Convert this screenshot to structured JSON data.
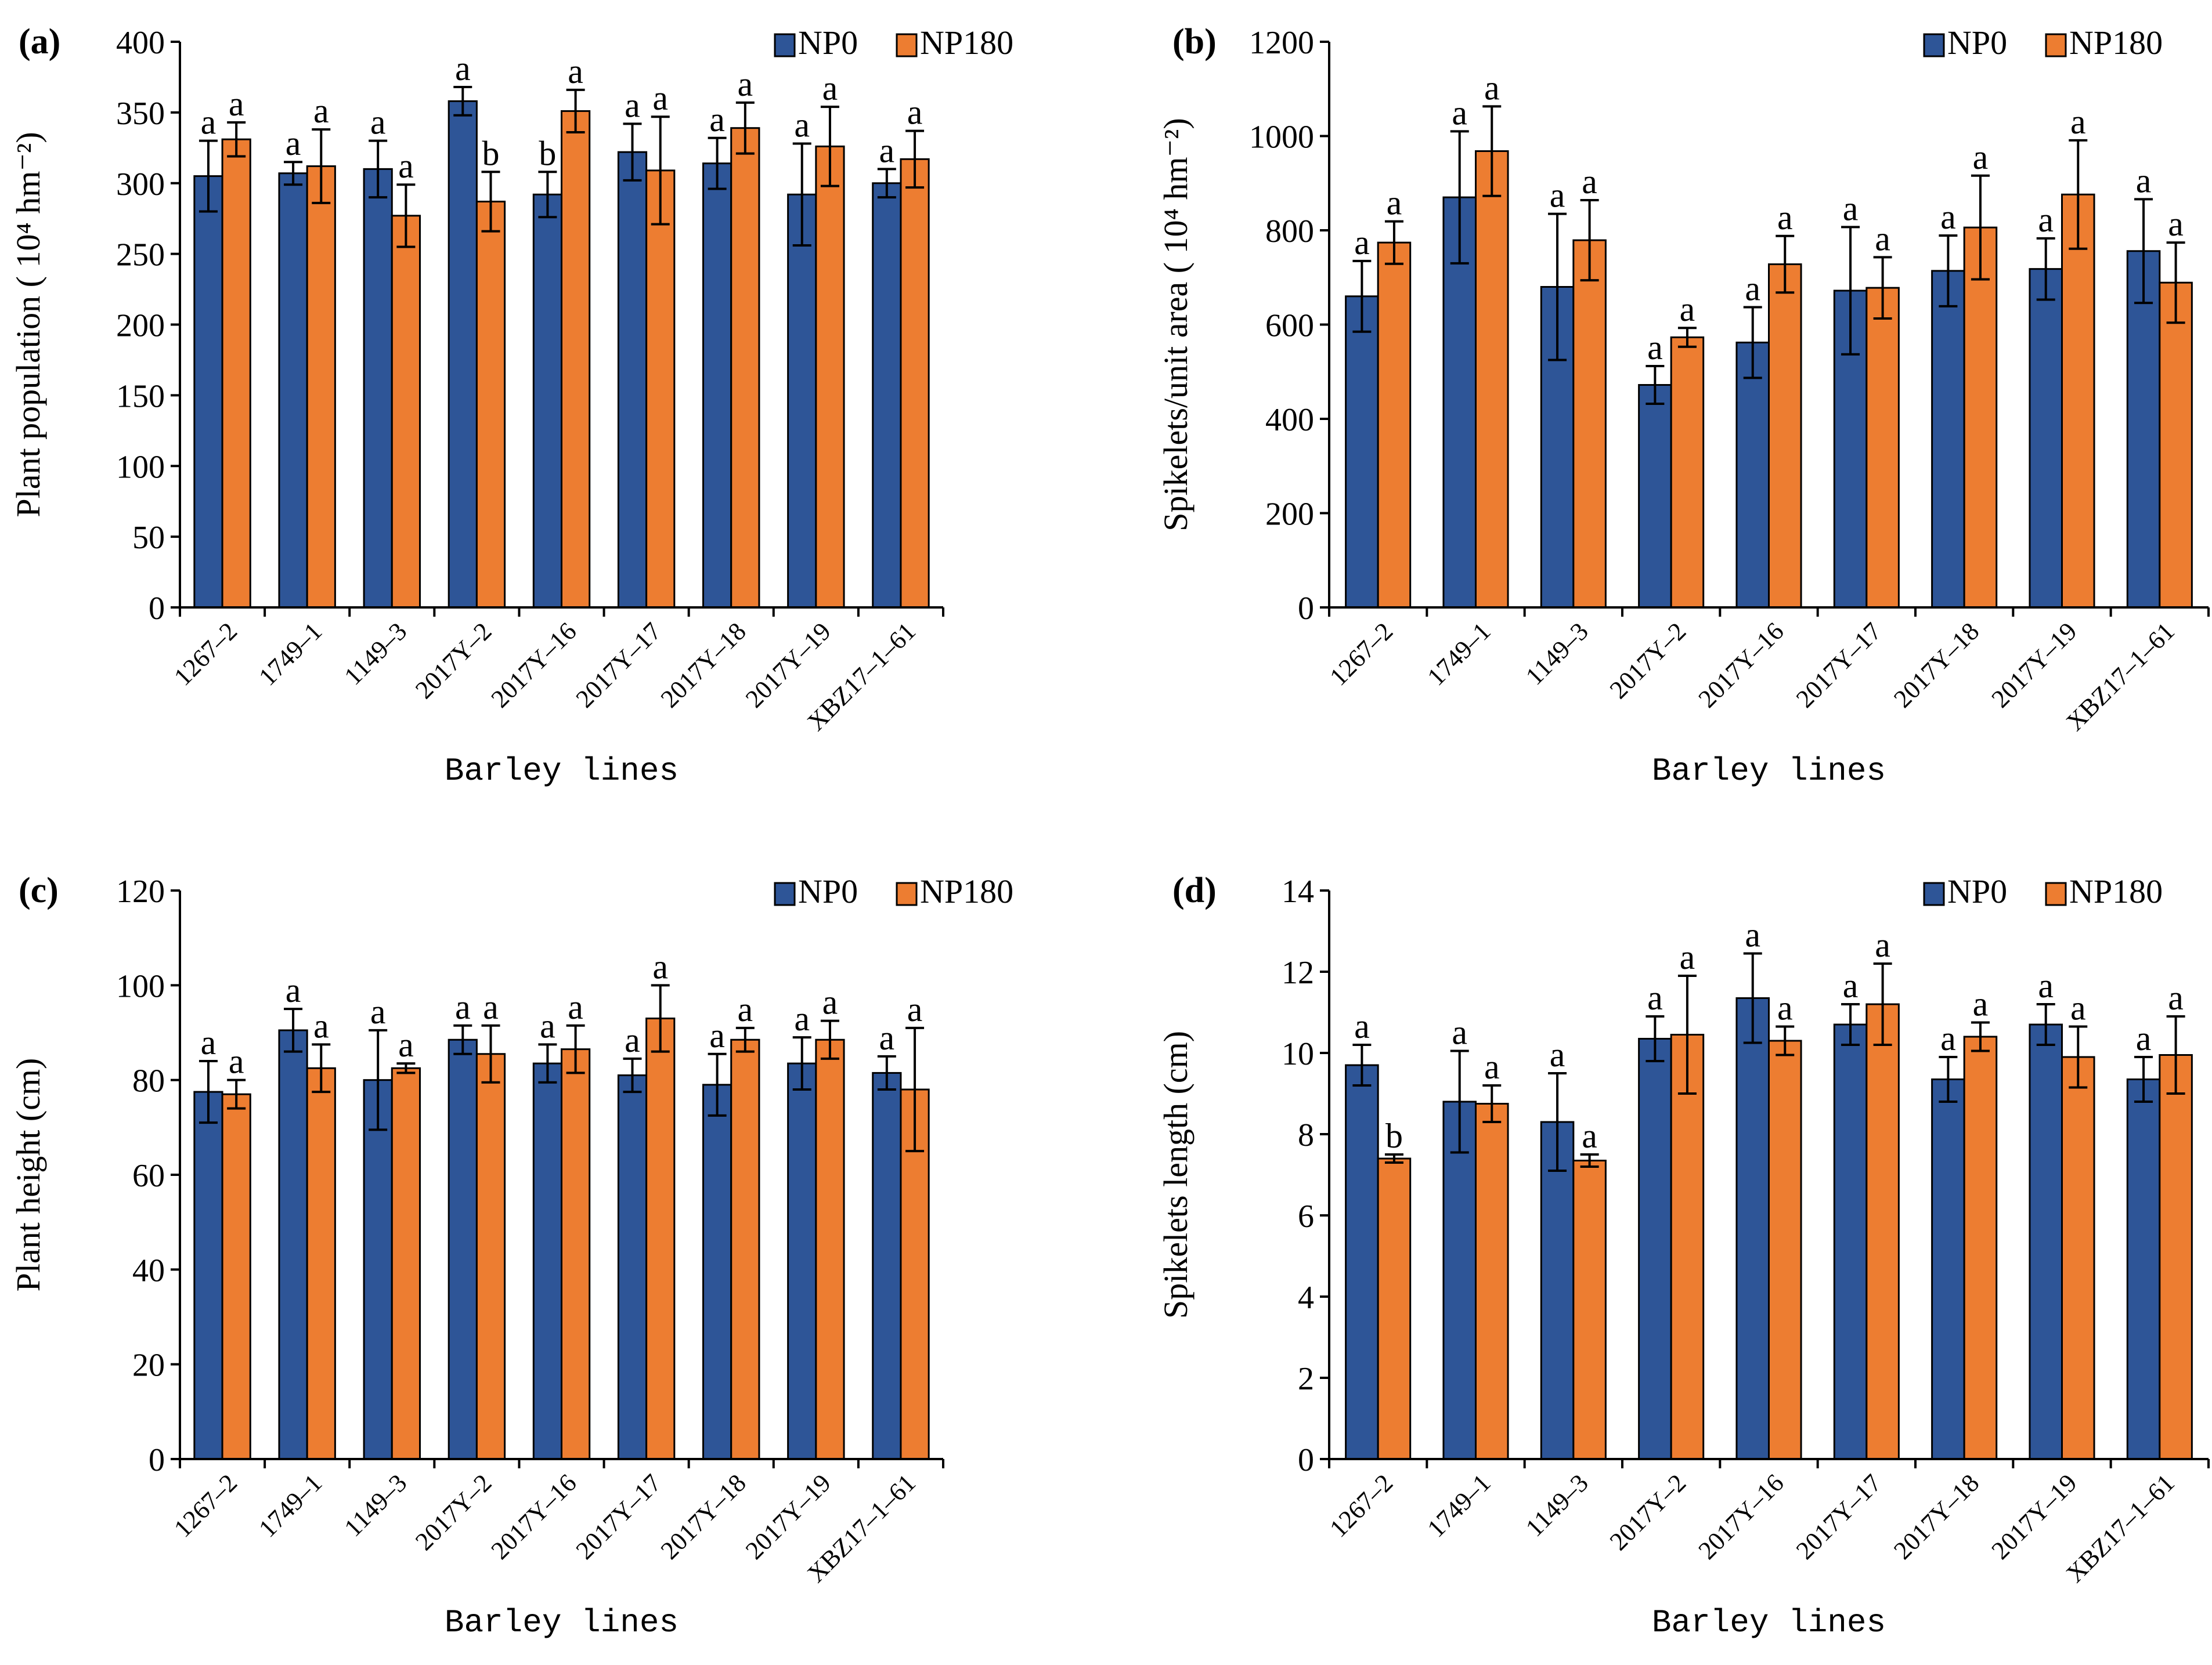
{
  "colors": {
    "np0": "#2e5597",
    "np180": "#ed7d31",
    "axis": "#000000"
  },
  "chart_data": [
    {
      "id": "a",
      "type": "bar",
      "panel_label": "(a)",
      "title": "",
      "ylabel": "Plant population ( 10⁴ hm⁻²)",
      "xlabel": "Barley lines",
      "ylim": [
        0,
        400
      ],
      "yticks": [
        0,
        50,
        100,
        150,
        200,
        250,
        300,
        350,
        400
      ],
      "legend": "top-right",
      "categories": [
        "1267–2",
        "1749–1",
        "1149–3",
        "2017Y–2",
        "2017Y–16",
        "2017Y–17",
        "2017Y–18",
        "2017Y–19",
        "XBZ17–1–61"
      ],
      "series": [
        {
          "name": "NP0",
          "values": [
            305,
            307,
            310,
            358,
            292,
            322,
            314,
            292,
            300
          ],
          "errors": [
            25,
            8,
            20,
            10,
            16,
            20,
            18,
            36,
            10
          ],
          "letters": [
            "a",
            "a",
            "a",
            "a",
            "b",
            "a",
            "a",
            "a",
            "a"
          ]
        },
        {
          "name": "NP180",
          "values": [
            331,
            312,
            277,
            287,
            351,
            309,
            339,
            326,
            317
          ],
          "errors": [
            12,
            26,
            22,
            21,
            15,
            38,
            18,
            28,
            20
          ],
          "letters": [
            "a",
            "a",
            "a",
            "b",
            "a",
            "a",
            "a",
            "a",
            "a"
          ]
        }
      ]
    },
    {
      "id": "b",
      "type": "bar",
      "panel_label": "(b)",
      "title": "",
      "ylabel": "Spikelets/unit area ( 10⁴ hm⁻²)",
      "xlabel": "Barley lines",
      "ylim": [
        0,
        1200
      ],
      "yticks": [
        0,
        200,
        400,
        600,
        800,
        1000,
        1200
      ],
      "legend": "top-right",
      "categories": [
        "1267–2",
        "1749–1",
        "1149–3",
        "2017Y–2",
        "2017Y–16",
        "2017Y–17",
        "2017Y–18",
        "2017Y–19",
        "XBZ17–1–61"
      ],
      "series": [
        {
          "name": "NP0",
          "values": [
            660,
            870,
            680,
            472,
            562,
            672,
            714,
            718,
            756
          ],
          "errors": [
            75,
            140,
            155,
            40,
            75,
            135,
            75,
            65,
            110
          ],
          "letters": [
            "a",
            "a",
            "a",
            "a",
            "a",
            "a",
            "a",
            "a",
            "a"
          ]
        },
        {
          "name": "NP180",
          "values": [
            774,
            968,
            779,
            573,
            728,
            678,
            806,
            876,
            689
          ],
          "errors": [
            45,
            95,
            85,
            20,
            60,
            65,
            110,
            115,
            85
          ],
          "letters": [
            "a",
            "a",
            "a",
            "a",
            "a",
            "a",
            "a",
            "a",
            "a"
          ]
        }
      ]
    },
    {
      "id": "c",
      "type": "bar",
      "panel_label": "(c)",
      "title": "",
      "ylabel": "Plant height (cm)",
      "xlabel": "Barley lines",
      "ylim": [
        0,
        120
      ],
      "yticks": [
        0,
        20,
        40,
        60,
        80,
        100,
        120
      ],
      "legend": "top-right",
      "categories": [
        "1267–2",
        "1749–1",
        "1149–3",
        "2017Y–2",
        "2017Y–16",
        "2017Y–17",
        "2017Y–18",
        "2017Y–19",
        "XBZ17–1–61"
      ],
      "series": [
        {
          "name": "NP0",
          "values": [
            77.5,
            90.5,
            80,
            88.5,
            83.5,
            81,
            79,
            83.5,
            81.5
          ],
          "errors": [
            6.5,
            4.5,
            10.5,
            3,
            4,
            3.5,
            6.5,
            5.5,
            3.5
          ],
          "letters": [
            "a",
            "a",
            "a",
            "a",
            "a",
            "a",
            "a",
            "a",
            "a"
          ]
        },
        {
          "name": "NP180",
          "values": [
            77,
            82.5,
            82.5,
            85.5,
            86.5,
            93,
            88.5,
            88.5,
            78
          ],
          "errors": [
            3,
            5,
            1,
            6,
            5,
            7,
            2.5,
            4,
            13
          ],
          "letters": [
            "a",
            "a",
            "a",
            "a",
            "a",
            "a",
            "a",
            "a",
            "a"
          ]
        }
      ]
    },
    {
      "id": "d",
      "type": "bar",
      "panel_label": "(d)",
      "title": "",
      "ylabel": "Spikelets length (cm)",
      "xlabel": "Barley lines",
      "ylim": [
        0,
        14
      ],
      "yticks": [
        0,
        2,
        4,
        6,
        8,
        10,
        12,
        14
      ],
      "legend": "top-right",
      "categories": [
        "1267–2",
        "1749–1",
        "1149–3",
        "2017Y–2",
        "2017Y–16",
        "2017Y–17",
        "2017Y–18",
        "2017Y–19",
        "XBZ17–1–61"
      ],
      "series": [
        {
          "name": "NP0",
          "values": [
            9.7,
            8.8,
            8.3,
            10.35,
            11.35,
            10.7,
            9.35,
            10.7,
            9.35
          ],
          "errors": [
            0.5,
            1.25,
            1.2,
            0.55,
            1.1,
            0.5,
            0.55,
            0.5,
            0.55
          ],
          "letters": [
            "a",
            "a",
            "a",
            "a",
            "a",
            "a",
            "a",
            "a",
            "a"
          ]
        },
        {
          "name": "NP180",
          "values": [
            7.4,
            8.75,
            7.35,
            10.45,
            10.3,
            11.2,
            10.4,
            9.9,
            9.95
          ],
          "errors": [
            0.1,
            0.45,
            0.15,
            1.45,
            0.35,
            1.0,
            0.35,
            0.75,
            0.95
          ],
          "letters": [
            "b",
            "a",
            "a",
            "a",
            "a",
            "a",
            "a",
            "a",
            "a"
          ]
        }
      ]
    }
  ]
}
